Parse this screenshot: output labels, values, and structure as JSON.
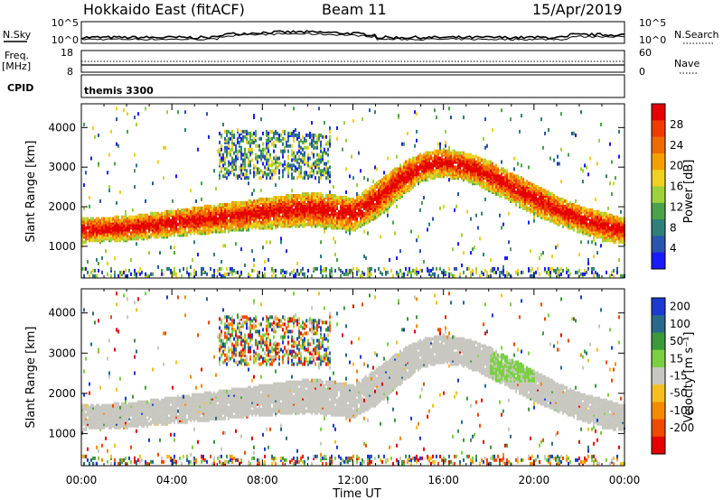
{
  "header": {
    "title": "Hokkaido East (fitACF)",
    "beam": "Beam 11",
    "date": "15/Apr/2019"
  },
  "strip": {
    "nsky_label": "N.Sky",
    "nsky_ticks": [
      "10^5",
      "10^0"
    ],
    "nsearch_label": "N.Search",
    "nsearch_ticks": [
      "10^5",
      "10^0"
    ],
    "freq_label": [
      "Freq.",
      "[MHz]"
    ],
    "freq_ticks": [
      "18",
      "8"
    ],
    "nave_label": "Nave",
    "nave_ticks": [
      "60",
      "0"
    ],
    "cpid_label": "CPID",
    "cpid_value": "themis 3300"
  },
  "colors": {
    "power": [
      "#1a1aff",
      "#2a55b0",
      "#2f7f7a",
      "#4aa24a",
      "#9ed23a",
      "#f0d020",
      "#f5a000",
      "#f06a00",
      "#ef3a00",
      "#e60000"
    ],
    "velocity": [
      "#e60000",
      "#f04a00",
      "#f58a00",
      "#f5bf20",
      "#c8c8c0",
      "#7ad040",
      "#3a9a3a",
      "#2a6a8a",
      "#1a3ad0"
    ],
    "vel_bg": "#c8c8c0"
  },
  "chart_data": [
    {
      "type": "heatmap",
      "title": "Power",
      "xlabel": "Time UT",
      "ylabel": "Slant Range [km]",
      "x_ticks": [
        "00:00",
        "04:00",
        "08:00",
        "12:00",
        "16:00",
        "20:00",
        "00:00"
      ],
      "xlim_hours": [
        0,
        24
      ],
      "y_ticks": [
        1000,
        2000,
        3000,
        4000
      ],
      "ylim": [
        200,
        4600
      ],
      "colorbar_label": "Power [dB]",
      "colorbar_ticks": [
        4,
        8,
        12,
        16,
        20,
        24,
        28
      ],
      "colorbar_range": [
        0,
        32
      ],
      "main_echo_band_km": {
        "hours": [
          0,
          2,
          4,
          6,
          8,
          10,
          11,
          12,
          13,
          14,
          15,
          16,
          17,
          18,
          19,
          20,
          21,
          22,
          23,
          24
        ],
        "lower": [
          1100,
          1150,
          1250,
          1350,
          1450,
          1500,
          1450,
          1400,
          1700,
          2200,
          2650,
          2750,
          2650,
          2400,
          2100,
          1800,
          1550,
          1350,
          1150,
          1050
        ],
        "upper": [
          1700,
          1750,
          1900,
          2050,
          2200,
          2350,
          2300,
          2200,
          2600,
          3050,
          3350,
          3450,
          3350,
          3150,
          2850,
          2550,
          2250,
          2000,
          1850,
          1700
        ]
      },
      "upper_echo_patch_km": {
        "hours": [
          6,
          11
        ],
        "range": [
          2700,
          3900
        ]
      }
    },
    {
      "type": "heatmap",
      "title": "Velocity",
      "xlabel": "Time UT",
      "ylabel": "Slant Range [km]",
      "x_ticks": [
        "00:00",
        "04:00",
        "08:00",
        "12:00",
        "16:00",
        "20:00",
        "00:00"
      ],
      "xlim_hours": [
        0,
        24
      ],
      "y_ticks": [
        1000,
        2000,
        3000,
        4000
      ],
      "ylim": [
        200,
        4600
      ],
      "colorbar_label": "Velocity [m s⁻¹]",
      "colorbar_ticks": [
        200,
        100,
        50,
        15,
        -15,
        -50,
        -100,
        -200
      ],
      "ground_scatter": "grey",
      "positive_patch": {
        "hours": [
          18,
          20
        ],
        "range_km": [
          2300,
          3000
        ]
      }
    }
  ]
}
